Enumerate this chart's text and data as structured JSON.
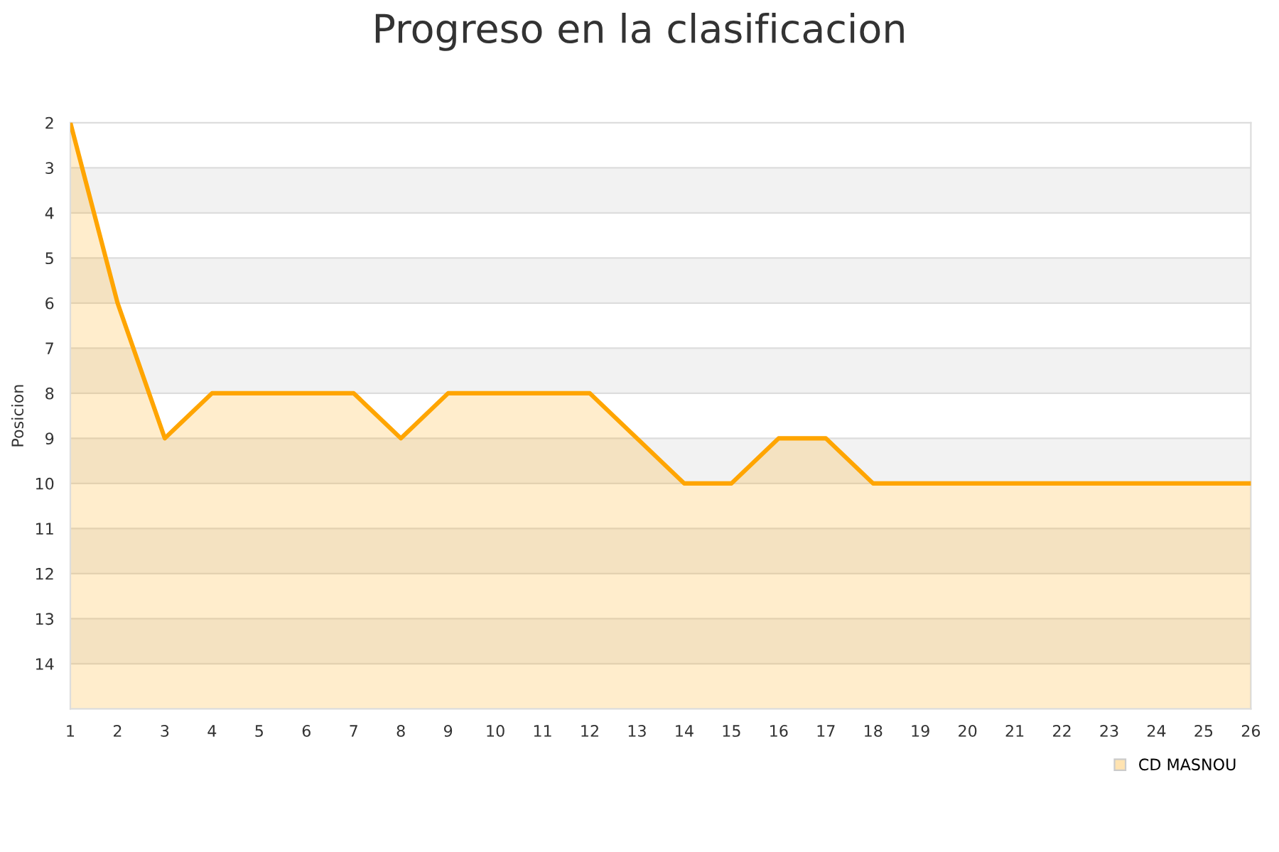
{
  "chart_data": {
    "type": "area",
    "title": "Progreso en la clasificacion",
    "ylabel": "Posicion",
    "x": [
      1,
      2,
      3,
      4,
      5,
      6,
      7,
      8,
      9,
      10,
      11,
      12,
      13,
      14,
      15,
      16,
      17,
      18,
      19,
      20,
      21,
      22,
      23,
      24,
      25,
      26
    ],
    "series": [
      {
        "name": "CD MASNOU",
        "color": "#ffa500",
        "values": [
          2,
          6,
          9,
          8,
          8,
          8,
          8,
          9,
          8,
          8,
          8,
          8,
          9,
          10,
          10,
          9,
          9,
          10,
          10,
          10,
          10,
          10,
          10,
          10,
          10,
          10
        ]
      }
    ],
    "xlim": [
      1,
      26
    ],
    "xticks": [
      1,
      2,
      3,
      4,
      5,
      6,
      7,
      8,
      9,
      10,
      11,
      12,
      13,
      14,
      15,
      16,
      17,
      18,
      19,
      20,
      21,
      22,
      23,
      24,
      25,
      26
    ],
    "ylim": [
      15,
      2
    ],
    "yticks": [
      2,
      3,
      4,
      5,
      6,
      7,
      8,
      9,
      10,
      11,
      12,
      13,
      14
    ],
    "bands": [
      {
        "axis": "y",
        "from": 3,
        "to": 4,
        "color": "#f2f2f2"
      },
      {
        "axis": "y",
        "from": 5,
        "to": 6,
        "color": "#f2f2f2"
      },
      {
        "axis": "y",
        "from": 7,
        "to": 8,
        "color": "#f2f2f2"
      },
      {
        "axis": "y",
        "from": 9,
        "to": 10,
        "color": "#f2f2f2"
      },
      {
        "axis": "y",
        "from": 11,
        "to": 12,
        "color": "#f2f2f2"
      },
      {
        "axis": "y",
        "from": 13,
        "to": 14,
        "color": "#f2f2f2"
      }
    ],
    "grid": "y",
    "legend": "bottom right",
    "marker": "none",
    "line_style": "solid"
  }
}
